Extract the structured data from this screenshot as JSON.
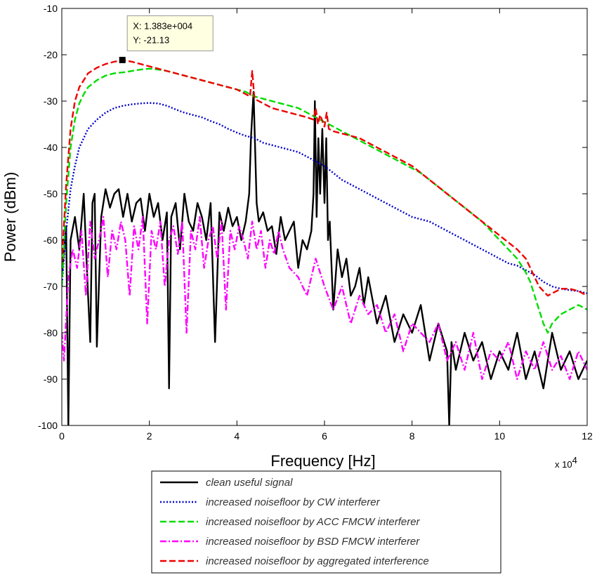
{
  "chart_data": {
    "type": "line",
    "xlabel": "Frequency [Hz]",
    "ylabel": "Power (dBm)",
    "x_exponent_base": "x 10",
    "x_exponent_power": "4",
    "xlim": [
      0,
      120000
    ],
    "ylim": [
      -100,
      -10
    ],
    "x_ticks": [
      0,
      20000,
      40000,
      60000,
      80000,
      100000,
      120000
    ],
    "x_tick_labels": [
      "0",
      "2",
      "4",
      "6",
      "8",
      "10",
      "12"
    ],
    "y_ticks": [
      -100,
      -90,
      -80,
      -70,
      -60,
      -50,
      -40,
      -30,
      -20,
      -10
    ],
    "y_tick_labels": [
      "-100",
      "-90",
      "-80",
      "-70",
      "-60",
      "-50",
      "-40",
      "-30",
      "-20",
      "-10"
    ],
    "grid": false,
    "legend_position": "bottom",
    "datatip": {
      "x": 13830,
      "y": -21.13,
      "x_text": "X: 1.383e+004",
      "y_text": "Y: -21.13"
    },
    "series": [
      {
        "name": "clean useful signal",
        "color": "#000000",
        "style": "solid",
        "x": [
          0,
          1000,
          1500,
          2000,
          3000,
          4000,
          5000,
          6000,
          6500,
          7000,
          7500,
          8000,
          9000,
          10000,
          11000,
          12000,
          13000,
          14000,
          15000,
          16000,
          17000,
          18000,
          19000,
          20000,
          21000,
          22000,
          23000,
          24000,
          24500,
          25000,
          26000,
          27000,
          28000,
          29000,
          30000,
          31000,
          32000,
          33000,
          34000,
          35000,
          36000,
          37000,
          38000,
          39000,
          40000,
          41000,
          42000,
          42800,
          43200,
          43800,
          44500,
          45000,
          46000,
          47000,
          48000,
          49000,
          50000,
          51000,
          52000,
          53000,
          54000,
          55000,
          56000,
          57000,
          57500,
          57800,
          58200,
          58600,
          59000,
          59500,
          60000,
          60400,
          60800,
          61200,
          62000,
          63000,
          64000,
          65000,
          66000,
          67000,
          68000,
          69000,
          70000,
          72000,
          74000,
          76000,
          78000,
          80000,
          82000,
          84000,
          86000,
          88000,
          88500,
          89000,
          90000,
          92000,
          94000,
          96000,
          98000,
          100000,
          102000,
          104000,
          106000,
          108000,
          110000,
          112000,
          114000,
          116000,
          118000,
          120000
        ],
        "y": [
          -68,
          -57,
          -100,
          -60,
          -55,
          -62,
          -50,
          -72,
          -82,
          -52,
          -50,
          -83,
          -55,
          -49,
          -53,
          -50,
          -49,
          -55,
          -50,
          -56,
          -52,
          -51,
          -58,
          -50,
          -55,
          -52,
          -60,
          -54,
          -92,
          -55,
          -52,
          -62,
          -50,
          -56,
          -58,
          -52,
          -55,
          -60,
          -52,
          -82,
          -54,
          -58,
          -53,
          -57,
          -55,
          -60,
          -56,
          -50,
          -38,
          -28,
          -52,
          -56,
          -54,
          -58,
          -57,
          -63,
          -55,
          -60,
          -58,
          -56,
          -66,
          -60,
          -62,
          -58,
          -50,
          -30,
          -55,
          -38,
          -50,
          -36,
          -52,
          -38,
          -60,
          -56,
          -75,
          -62,
          -68,
          -64,
          -72,
          -70,
          -66,
          -74,
          -68,
          -78,
          -72,
          -82,
          -76,
          -80,
          -74,
          -86,
          -78,
          -84,
          -100,
          -82,
          -88,
          -80,
          -86,
          -82,
          -90,
          -84,
          -88,
          -80,
          -90,
          -84,
          -92,
          -80,
          -88,
          -84,
          -90,
          -86
        ]
      },
      {
        "name": "increased noisefloor by CW interferer",
        "color": "#0000cc",
        "style": "dotted",
        "x": [
          0,
          1000,
          2000,
          3000,
          4000,
          5000,
          6000,
          8000,
          10000,
          12000,
          14000,
          16000,
          18000,
          20000,
          22000,
          24000,
          26000,
          28000,
          30000,
          32000,
          34000,
          36000,
          38000,
          40000,
          42000,
          44000,
          46000,
          48000,
          50000,
          52000,
          54000,
          56000,
          58000,
          60000,
          62000,
          64000,
          66000,
          68000,
          70000,
          72000,
          74000,
          76000,
          78000,
          80000,
          82000,
          84000,
          86000,
          88000,
          90000,
          92000,
          94000,
          96000,
          98000,
          100000,
          102000,
          104000,
          106000,
          108000,
          110000,
          112000,
          114000,
          116000,
          118000,
          120000
        ],
        "y": [
          -70,
          -58,
          -49,
          -44,
          -40,
          -38,
          -36,
          -34,
          -32.5,
          -31.5,
          -31,
          -30.7,
          -30.5,
          -30.4,
          -30.5,
          -31,
          -31.8,
          -32.5,
          -33,
          -33.5,
          -34.3,
          -35,
          -36,
          -36.8,
          -37.5,
          -38,
          -39,
          -39.5,
          -40,
          -40.5,
          -41,
          -42,
          -43,
          -44,
          -45.5,
          -47,
          -48,
          -49,
          -50,
          -51,
          -52,
          -53,
          -54,
          -55,
          -55.5,
          -56,
          -57,
          -58,
          -59,
          -60,
          -61,
          -62,
          -63,
          -64,
          -65,
          -65.5,
          -66.5,
          -67.5,
          -69,
          -70,
          -70.5,
          -70.8,
          -71,
          -71.5
        ]
      },
      {
        "name": "increased noisefloor by ACC FMCW interferer",
        "color": "#00dd00",
        "style": "dashed",
        "x": [
          0,
          1000,
          2000,
          3000,
          4000,
          5000,
          6000,
          8000,
          10000,
          12000,
          14000,
          16000,
          18000,
          20000,
          22000,
          24000,
          26000,
          28000,
          30000,
          32000,
          34000,
          36000,
          38000,
          40000,
          42000,
          44000,
          46000,
          48000,
          50000,
          52000,
          54000,
          56000,
          58000,
          60000,
          62000,
          64000,
          66000,
          68000,
          70000,
          72000,
          74000,
          76000,
          78000,
          80000,
          82000,
          84000,
          86000,
          88000,
          90000,
          92000,
          94000,
          96000,
          98000,
          100000,
          102000,
          104000,
          105000,
          106000,
          107000,
          108000,
          109000,
          110000,
          111000,
          112000,
          114000,
          116000,
          118000,
          120000
        ],
        "y": [
          -70,
          -52,
          -40,
          -34,
          -30.5,
          -28.5,
          -27,
          -25.5,
          -24.5,
          -24,
          -23.8,
          -23.5,
          -23.2,
          -23,
          -23.2,
          -23.5,
          -24,
          -24.5,
          -25,
          -25.5,
          -26,
          -26.5,
          -27,
          -27.5,
          -28,
          -29,
          -29.5,
          -30,
          -30.5,
          -31,
          -31.5,
          -32.5,
          -33.5,
          -34.5,
          -35.5,
          -36.5,
          -37.5,
          -38.5,
          -39.5,
          -40.5,
          -41.5,
          -42.5,
          -43.5,
          -44.5,
          -45.5,
          -47,
          -48.5,
          -50,
          -51.5,
          -53,
          -54.5,
          -56,
          -58,
          -60,
          -62,
          -64,
          -65.5,
          -67,
          -69,
          -72,
          -75,
          -78,
          -80,
          -78,
          -76,
          -75,
          -74,
          -75
        ]
      },
      {
        "name": "increased noisefloor by BSD FMCW interferer",
        "color": "#ff00ff",
        "style": "dashdot",
        "x": [
          0,
          500,
          1500,
          2500,
          3500,
          4500,
          5500,
          6500,
          7500,
          8500,
          9500,
          10500,
          11500,
          12500,
          13500,
          14500,
          15500,
          16500,
          17500,
          18500,
          19500,
          20500,
          21500,
          22500,
          23500,
          24500,
          25500,
          26500,
          27500,
          28500,
          29500,
          30500,
          31500,
          32500,
          33500,
          34500,
          35500,
          36500,
          37500,
          38500,
          39500,
          40500,
          41500,
          42500,
          43500,
          44500,
          45500,
          46500,
          47500,
          48500,
          49500,
          50500,
          52000,
          54000,
          56000,
          58000,
          60000,
          62000,
          64000,
          66000,
          68000,
          70000,
          72000,
          74000,
          76000,
          78000,
          80000,
          82000,
          84000,
          86000,
          88000,
          90000,
          92000,
          94000,
          96000,
          98000,
          100000,
          102000,
          104000,
          106000,
          108000,
          110000,
          112000,
          114000,
          116000,
          118000,
          120000
        ],
        "y": [
          -80,
          -86,
          -68,
          -62,
          -66,
          -58,
          -72,
          -56,
          -64,
          -60,
          -55,
          -68,
          -58,
          -62,
          -56,
          -60,
          -72,
          -57,
          -62,
          -55,
          -78,
          -58,
          -62,
          -56,
          -70,
          -60,
          -57,
          -63,
          -56,
          -80,
          -58,
          -62,
          -55,
          -66,
          -60,
          -57,
          -64,
          -56,
          -75,
          -58,
          -62,
          -57,
          -60,
          -64,
          -56,
          -62,
          -58,
          -66,
          -60,
          -63,
          -58,
          -62,
          -66,
          -68,
          -72,
          -64,
          -70,
          -75,
          -70,
          -78,
          -72,
          -76,
          -74,
          -80,
          -76,
          -84,
          -78,
          -80,
          -82,
          -78,
          -86,
          -82,
          -88,
          -80,
          -90,
          -84,
          -86,
          -82,
          -90,
          -84,
          -88,
          -82,
          -88,
          -85,
          -90,
          -84,
          -88
        ]
      },
      {
        "name": "increased noisefloor by aggregated interference",
        "color": "#ee0000",
        "style": "dashed",
        "x": [
          0,
          1000,
          2000,
          3000,
          4000,
          5000,
          6000,
          8000,
          10000,
          12000,
          13830,
          16000,
          18000,
          20000,
          22000,
          24000,
          26000,
          28000,
          30000,
          32000,
          34000,
          36000,
          38000,
          40000,
          42000,
          43000,
          43500,
          44000,
          46000,
          48000,
          50000,
          52000,
          54000,
          56000,
          57500,
          58000,
          58500,
          59000,
          60000,
          60500,
          61000,
          62000,
          64000,
          66000,
          68000,
          70000,
          72000,
          74000,
          76000,
          78000,
          80000,
          82000,
          84000,
          86000,
          88000,
          90000,
          92000,
          94000,
          96000,
          98000,
          100000,
          102000,
          104000,
          106000,
          107000,
          108000,
          109000,
          110000,
          111000,
          112000,
          114000,
          116000,
          118000,
          120000
        ],
        "y": [
          -65,
          -48,
          -36,
          -30,
          -27,
          -25.5,
          -24,
          -22.8,
          -22,
          -21.5,
          -21.13,
          -21.5,
          -22,
          -22.5,
          -23,
          -23.5,
          -24,
          -24.5,
          -25,
          -25.5,
          -26,
          -26.5,
          -27,
          -27.5,
          -28.5,
          -29,
          -23.5,
          -29.5,
          -30.5,
          -31.5,
          -32,
          -32.5,
          -33,
          -33.5,
          -34,
          -31.5,
          -35,
          -33,
          -35.5,
          -32.5,
          -36,
          -36.5,
          -37,
          -37.5,
          -38,
          -39,
          -40,
          -41,
          -42,
          -43,
          -44,
          -45.5,
          -47,
          -48.5,
          -50,
          -51.5,
          -53,
          -54.5,
          -56,
          -57.5,
          -59,
          -60.5,
          -62,
          -64,
          -66,
          -68,
          -70,
          -71,
          -72,
          -71.5,
          -70.5,
          -70.5,
          -71,
          -72
        ]
      }
    ]
  }
}
